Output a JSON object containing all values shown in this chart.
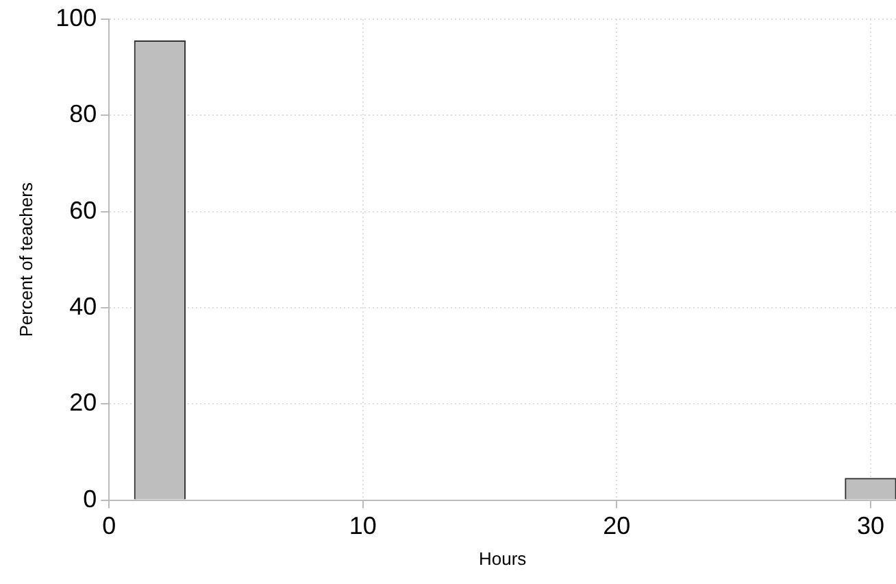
{
  "chart_data": {
    "type": "histogram",
    "xlabel": "Hours",
    "ylabel": "Percent of teachers",
    "bins": [
      1,
      3,
      5,
      7,
      9,
      11,
      13,
      15,
      17,
      19,
      21,
      23,
      25,
      27,
      29,
      31
    ],
    "values": [
      95.5,
      0,
      0,
      0,
      0,
      0,
      0,
      0,
      0,
      0,
      0,
      0,
      0,
      0,
      4.5
    ],
    "color": "#bebebe",
    "xlim": [
      0,
      31
    ],
    "xticks": [
      0,
      10,
      20,
      30
    ],
    "ylim": [
      0,
      100
    ],
    "yticks": [
      0,
      20,
      40,
      60,
      80,
      100
    ],
    "grid": true,
    "legend": false
  }
}
